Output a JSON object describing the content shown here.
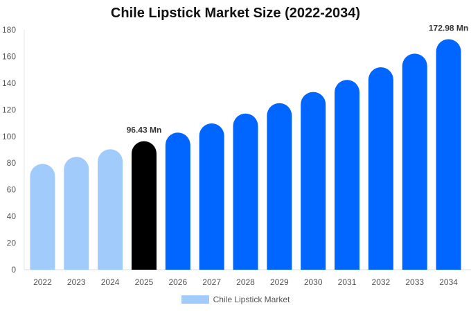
{
  "chart_data": {
    "type": "bar",
    "title": "Chile Lipstick Market Size (2022-2034)",
    "categories": [
      "2022",
      "2023",
      "2024",
      "2025",
      "2026",
      "2027",
      "2028",
      "2029",
      "2030",
      "2031",
      "2032",
      "2033",
      "2034"
    ],
    "series": [
      {
        "name": "Chile Lipstick Market",
        "values": [
          79.4,
          84.7,
          90.4,
          96.43,
          102.9,
          109.8,
          117.2,
          125.0,
          133.4,
          142.4,
          151.9,
          162.1,
          172.98
        ]
      }
    ],
    "ylim": [
      0,
      180
    ],
    "yticks": [
      0,
      20,
      40,
      60,
      80,
      100,
      120,
      140,
      160,
      180
    ],
    "xlabel": "",
    "ylabel": "",
    "grid": false,
    "legend": "bottom",
    "data_labels": [
      {
        "category": "2025",
        "text": "96.43 Mn"
      },
      {
        "category": "2034",
        "text": "172.98 Mn"
      }
    ],
    "colors": {
      "historical": "#a0cbfb",
      "base_year": "#000000",
      "forecast": "#0066ff"
    },
    "bar_color_groups": [
      "historical",
      "historical",
      "historical",
      "base_year",
      "forecast",
      "forecast",
      "forecast",
      "forecast",
      "forecast",
      "forecast",
      "forecast",
      "forecast",
      "forecast"
    ]
  }
}
